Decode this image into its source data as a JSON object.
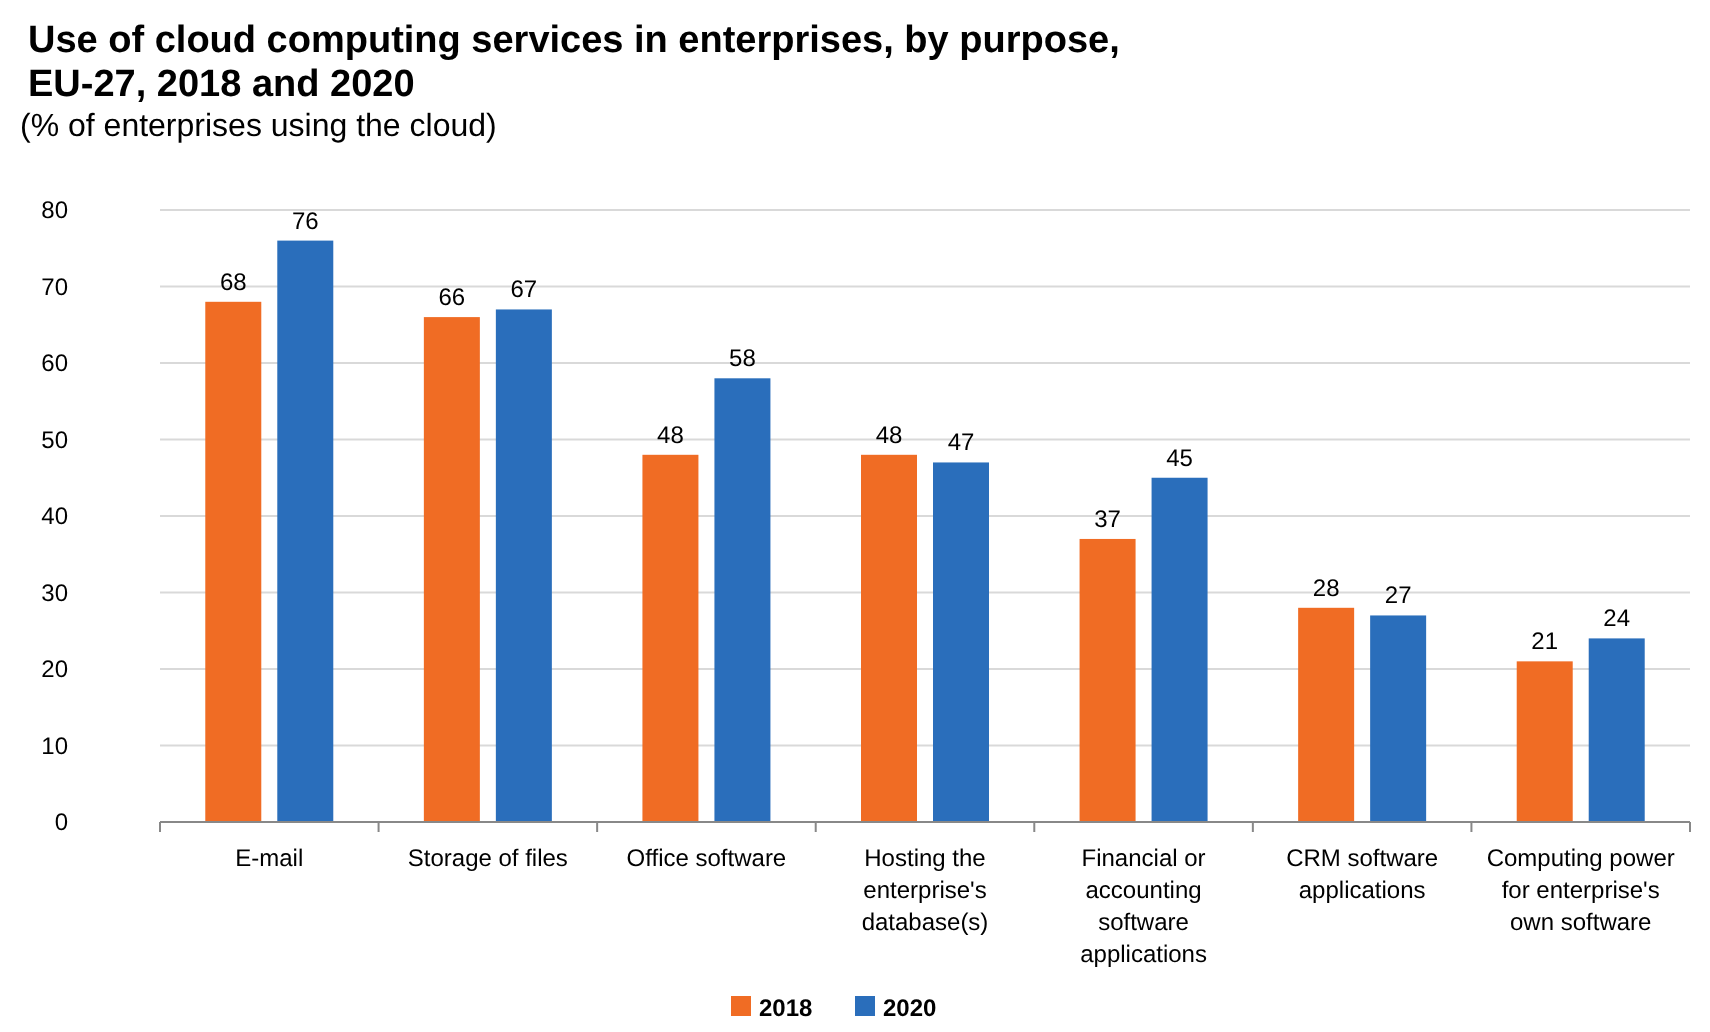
{
  "chart_data": {
    "type": "bar",
    "title": "Use of cloud computing services in enterprises, by purpose, EU-27, 2018 and 2020",
    "subtitle": "(% of enterprises using the cloud)",
    "categories": [
      "E-mail",
      "Storage of files",
      "Office software",
      "Hosting the enterprise's database(s)",
      "Financial or accounting software applications",
      "CRM software applications",
      "Computing power for enterprise's own software"
    ],
    "series": [
      {
        "name": "2018",
        "color": "#f06c24",
        "values": [
          68,
          66,
          48,
          48,
          37,
          28,
          21
        ]
      },
      {
        "name": "2020",
        "color": "#2a6ebb",
        "values": [
          76,
          67,
          58,
          47,
          45,
          27,
          24
        ]
      }
    ],
    "ylim": [
      0,
      80
    ],
    "yticks": [
      0,
      10,
      20,
      30,
      40,
      50,
      60,
      70,
      80
    ],
    "grid": "y",
    "data_labels": true,
    "legend": "bottom"
  }
}
